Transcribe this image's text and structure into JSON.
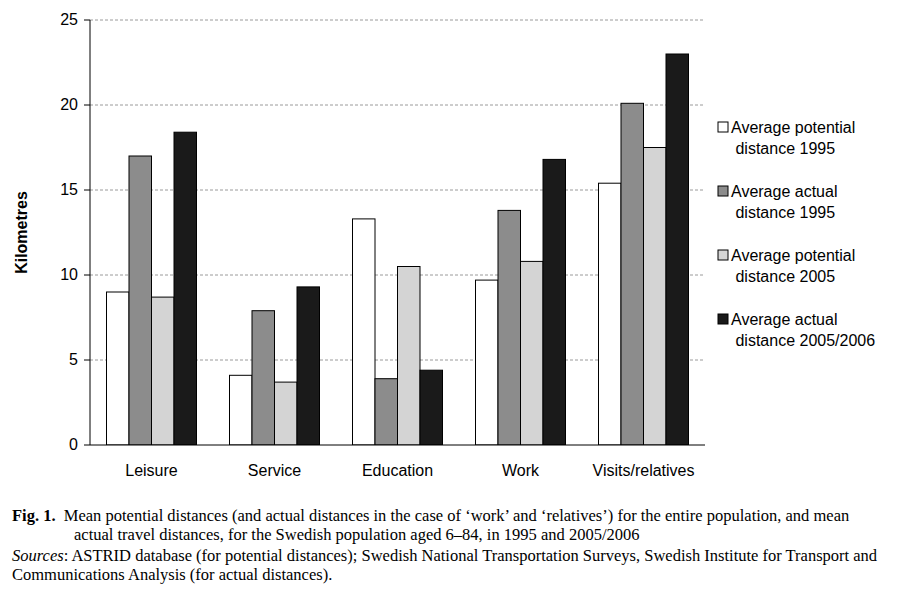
{
  "chart_data": {
    "type": "bar",
    "y_label": "Kilometres",
    "categories": [
      "Leisure",
      "Service",
      "Education",
      "Work",
      "Visits/relatives"
    ],
    "series": [
      {
        "name": "Average potential distance 1995",
        "color": "#ffffff",
        "values": [
          9.0,
          4.1,
          13.3,
          9.7,
          15.4
        ]
      },
      {
        "name": "Average actual distance 1995",
        "color": "#8c8c8c",
        "values": [
          17.0,
          7.9,
          3.9,
          13.8,
          20.1
        ]
      },
      {
        "name": "Average potential distance 2005",
        "color": "#d4d4d4",
        "values": [
          8.7,
          3.7,
          10.5,
          10.8,
          17.5
        ]
      },
      {
        "name": "Average actual distance 2005/2006",
        "color": "#1a1a1a",
        "values": [
          18.4,
          9.3,
          4.4,
          16.8,
          23.0
        ]
      }
    ],
    "ylim": [
      0,
      25
    ],
    "yticks": [
      0,
      5,
      10,
      15,
      20,
      25
    ],
    "grid": true,
    "legend": "right",
    "caption": {
      "label": "Fig. 1.",
      "text": "Mean potential distances (and actual distances in the case of ‘work’ and ‘relatives’) for the entire population, and mean actual travel distances, for the Swedish population aged 6–84, in 1995 and 2005/2006"
    },
    "source": {
      "label": "Sources",
      "text": ": ASTRID database (for potential distances); Swedish National Transportation Surveys, Swedish Institute for Transport and Communications Analysis (for actual distances)."
    }
  }
}
